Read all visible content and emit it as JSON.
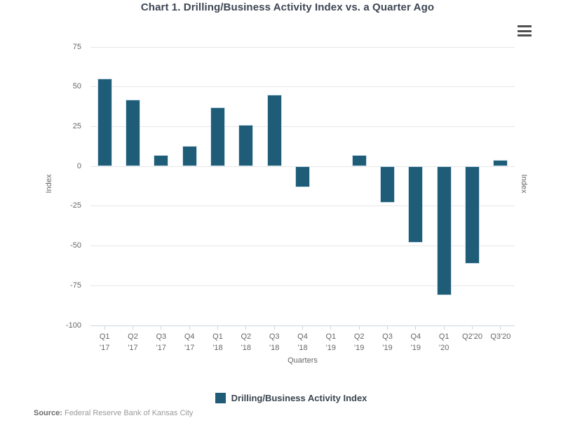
{
  "header": {
    "title": "Chart 1. Drilling/Business Activity Index vs. a Quarter Ago"
  },
  "toolbar": {
    "menu_icon": "hamburger-menu-icon"
  },
  "axes": {
    "y_left_title": "Index",
    "y_right_title": "Index",
    "x_title": "Quarters"
  },
  "legend": {
    "label": "Drilling/Business Activity Index",
    "swatch_color": "#1f5c78"
  },
  "source": {
    "label": "Source:",
    "text": "Federal Reserve Bank of Kansas City"
  },
  "colors": {
    "bar": "#1f5c78",
    "gridline": "#e6e6e6",
    "axis_line": "#ccd6e4",
    "text_gray": "#666666",
    "title_dark": "#3d4654"
  },
  "chart_data": {
    "type": "bar",
    "title": "Chart 1. Drilling/Business Activity Index vs. a Quarter Ago",
    "xlabel": "Quarters",
    "ylabel": "Index",
    "ylim": [
      -100,
      75
    ],
    "ytick_step": 25,
    "yticks": [
      75,
      50,
      25,
      0,
      -25,
      -50,
      -75,
      -100
    ],
    "grid": true,
    "legend_position": "bottom",
    "categories": [
      "Q1 '17",
      "Q2 '17",
      "Q3 '17",
      "Q4 '17",
      "Q1 '18",
      "Q2 '18",
      "Q3 '18",
      "Q4 '18",
      "Q1 '19",
      "Q2 '19",
      "Q3 '19",
      "Q4 '19",
      "Q1 '20",
      "Q2'20",
      "Q3'20"
    ],
    "categories_lines": [
      [
        "Q1",
        "'17"
      ],
      [
        "Q2",
        "'17"
      ],
      [
        "Q3",
        "'17"
      ],
      [
        "Q4",
        "'17"
      ],
      [
        "Q1",
        "'18"
      ],
      [
        "Q2",
        "'18"
      ],
      [
        "Q3",
        "'18"
      ],
      [
        "Q4",
        "'18"
      ],
      [
        "Q1",
        "'19"
      ],
      [
        "Q2",
        "'19"
      ],
      [
        "Q3",
        "'19"
      ],
      [
        "Q4",
        "'19"
      ],
      [
        "Q1",
        "'20"
      ],
      [
        "Q2'20"
      ],
      [
        "Q3'20"
      ]
    ],
    "series": [
      {
        "name": "Drilling/Business Activity Index",
        "values": [
          55,
          42,
          7,
          13,
          37,
          26,
          45,
          -13,
          0,
          7,
          -23,
          -48,
          -81,
          -61,
          4
        ]
      }
    ]
  }
}
